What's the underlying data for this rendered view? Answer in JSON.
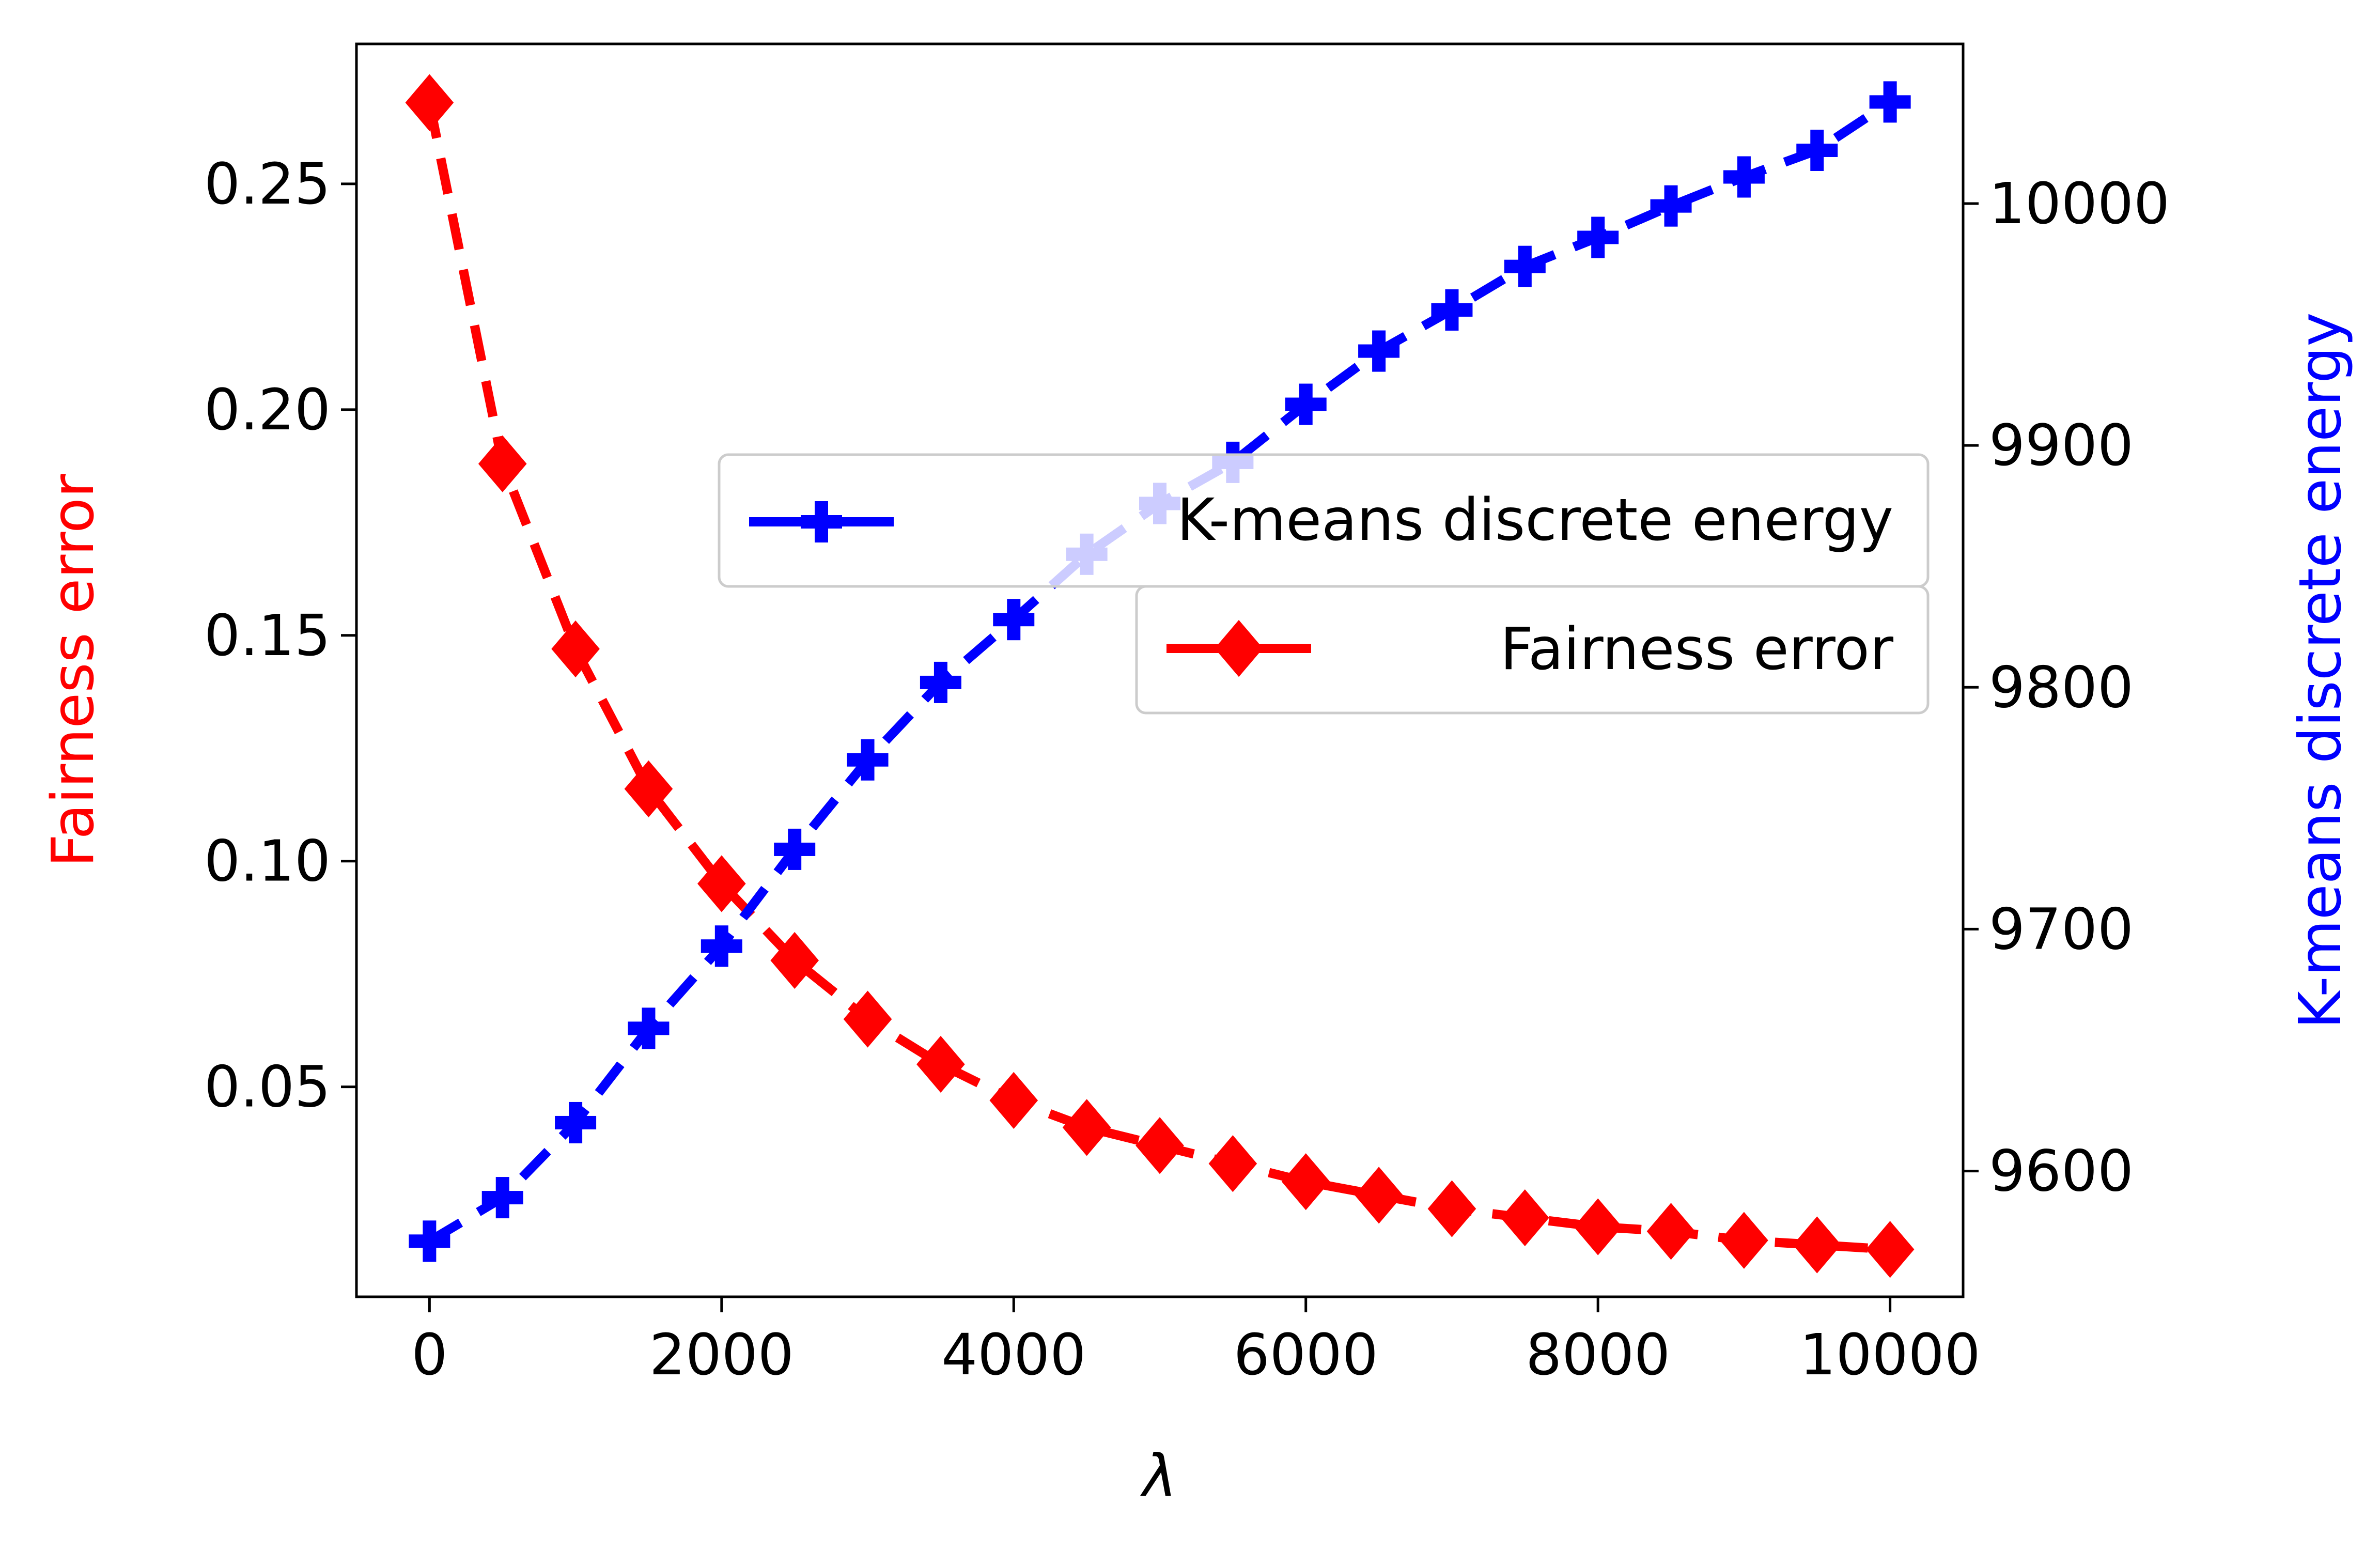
{
  "chart_data": {
    "type": "line",
    "title": "",
    "xlabel": "λ",
    "x": [
      0,
      500,
      1000,
      1500,
      2000,
      2500,
      3000,
      3500,
      4000,
      4500,
      5000,
      5500,
      6000,
      6500,
      7000,
      7500,
      8000,
      8500,
      9000,
      9500,
      10000
    ],
    "xlim": [
      -500,
      10500
    ],
    "xticks": [
      "0",
      "2000",
      "4000",
      "6000",
      "8000",
      "10000"
    ],
    "xtick_values": [
      0,
      2000,
      4000,
      6000,
      8000,
      10000
    ],
    "axes": {
      "left": {
        "label": "Fairness error",
        "color": "#ff0000",
        "ylim": [
          0.0035,
          0.281
        ],
        "ticks": [
          "0.05",
          "0.10",
          "0.15",
          "0.20",
          "0.25"
        ],
        "tick_values": [
          0.05,
          0.1,
          0.15,
          0.2,
          0.25
        ]
      },
      "right": {
        "label": "K-means discrete energy",
        "color": "#0000ff",
        "ylim": [
          9548,
          10066
        ],
        "ticks": [
          "9600",
          "9700",
          "9800",
          "9900",
          "10000"
        ],
        "tick_values": [
          9600,
          9700,
          9800,
          9900,
          10000
        ]
      }
    },
    "series": [
      {
        "name": "Fairness error",
        "axis": "left",
        "color": "#ff0000",
        "marker": "diamond",
        "linestyle": "dashed",
        "values": [
          0.268,
          0.188,
          0.147,
          0.116,
          0.095,
          0.078,
          0.065,
          0.055,
          0.047,
          0.041,
          0.037,
          0.033,
          0.029,
          0.026,
          0.023,
          0.021,
          0.019,
          0.018,
          0.016,
          0.015,
          0.014
        ]
      },
      {
        "name": "K-means discrete energy",
        "axis": "right",
        "color": "#0000ff",
        "marker": "plus",
        "linestyle": "dashed",
        "values": [
          9571,
          9589,
          9620,
          9659,
          9693,
          9733,
          9770,
          9802,
          9828,
          9855,
          9876,
          9893,
          9917,
          9939,
          9956,
          9974,
          9986,
          9999,
          10011,
          10022,
          10042
        ]
      }
    ],
    "legend": {
      "placement": "center-right",
      "entries": [
        "K-means discrete energy",
        "Fairness error"
      ]
    },
    "grid": false
  }
}
